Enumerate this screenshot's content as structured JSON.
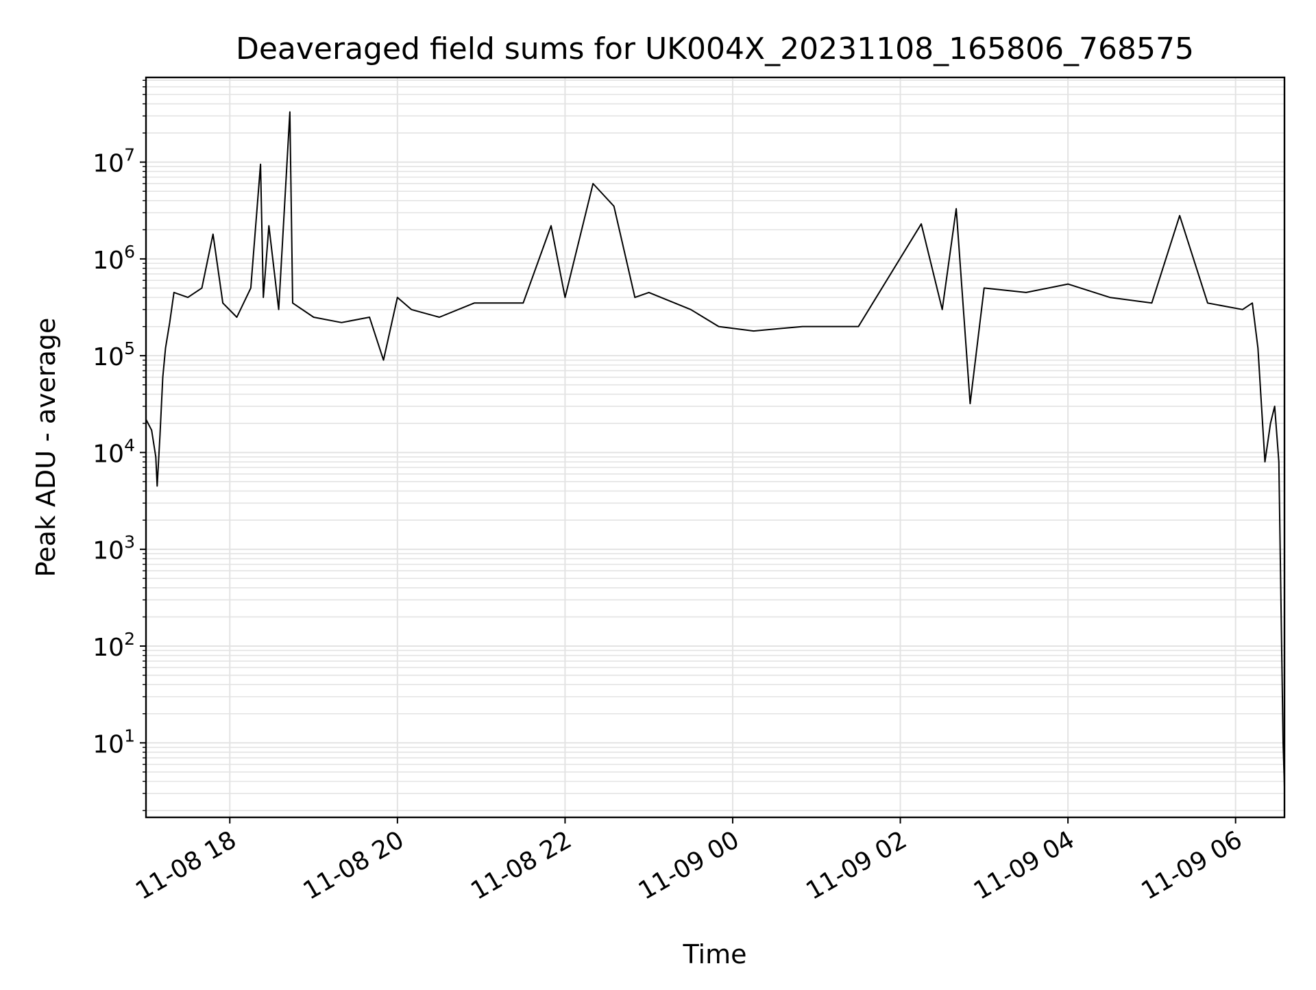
{
  "chart_data": {
    "type": "line",
    "title": "Deaveraged field sums for UK004X_20231108_165806_768575",
    "xlabel": "Time",
    "ylabel": "Peak ADU - average",
    "yscale": "log",
    "ylim": [
      1.7,
      75000000
    ],
    "xlim": [
      "11-08 17:00",
      "11-09 06:35"
    ],
    "grid": true,
    "line_color": "#000000",
    "grid_color": "#e3e3e3",
    "x_ticks": [
      {
        "label": "11-08 18",
        "t": "11-08 18:00"
      },
      {
        "label": "11-08 20",
        "t": "11-08 20:00"
      },
      {
        "label": "11-08 22",
        "t": "11-08 22:00"
      },
      {
        "label": "11-09 00",
        "t": "11-09 00:00"
      },
      {
        "label": "11-09 02",
        "t": "11-09 02:00"
      },
      {
        "label": "11-09 04",
        "t": "11-09 04:00"
      },
      {
        "label": "11-09 06",
        "t": "11-09 06:00"
      }
    ],
    "y_ticks": [
      {
        "base": "10",
        "exp": "1",
        "value": 10
      },
      {
        "base": "10",
        "exp": "2",
        "value": 100
      },
      {
        "base": "10",
        "exp": "3",
        "value": 1000
      },
      {
        "base": "10",
        "exp": "4",
        "value": 10000
      },
      {
        "base": "10",
        "exp": "5",
        "value": 100000
      },
      {
        "base": "10",
        "exp": "6",
        "value": 1000000
      },
      {
        "base": "10",
        "exp": "7",
        "value": 10000000
      }
    ],
    "series": [
      {
        "values": [
          [
            "11-08 17:00",
            22000
          ],
          [
            "11-08 17:04",
            17000
          ],
          [
            "11-08 17:07",
            9000
          ],
          [
            "11-08 17:08",
            4500
          ],
          [
            "11-08 17:10",
            15000
          ],
          [
            "11-08 17:12",
            60000
          ],
          [
            "11-08 17:14",
            120000
          ],
          [
            "11-08 17:17",
            220000
          ],
          [
            "11-08 17:20",
            450000
          ],
          [
            "11-08 17:30",
            400000
          ],
          [
            "11-08 17:40",
            500000
          ],
          [
            "11-08 17:48",
            1800000
          ],
          [
            "11-08 17:55",
            350000
          ],
          [
            "11-08 18:05",
            250000
          ],
          [
            "11-08 18:15",
            500000
          ],
          [
            "11-08 18:22",
            9500000
          ],
          [
            "11-08 18:24",
            400000
          ],
          [
            "11-08 18:28",
            2200000
          ],
          [
            "11-08 18:35",
            300000
          ],
          [
            "11-08 18:43",
            33000000
          ],
          [
            "11-08 18:45",
            350000
          ],
          [
            "11-08 19:00",
            250000
          ],
          [
            "11-08 19:20",
            220000
          ],
          [
            "11-08 19:40",
            250000
          ],
          [
            "11-08 19:50",
            90000
          ],
          [
            "11-08 20:00",
            400000
          ],
          [
            "11-08 20:10",
            300000
          ],
          [
            "11-08 20:30",
            250000
          ],
          [
            "11-08 20:55",
            350000
          ],
          [
            "11-08 21:30",
            350000
          ],
          [
            "11-08 21:50",
            2200000
          ],
          [
            "11-08 22:00",
            400000
          ],
          [
            "11-08 22:20",
            6000000
          ],
          [
            "11-08 22:35",
            3500000
          ],
          [
            "11-08 22:50",
            400000
          ],
          [
            "11-08 23:00",
            450000
          ],
          [
            "11-08 23:30",
            300000
          ],
          [
            "11-08 23:50",
            200000
          ],
          [
            "11-09 00:15",
            180000
          ],
          [
            "11-09 00:50",
            200000
          ],
          [
            "11-09 01:30",
            200000
          ],
          [
            "11-09 02:15",
            2300000
          ],
          [
            "11-09 02:30",
            300000
          ],
          [
            "11-09 02:40",
            3300000
          ],
          [
            "11-09 02:50",
            32000
          ],
          [
            "11-09 03:00",
            500000
          ],
          [
            "11-09 03:30",
            450000
          ],
          [
            "11-09 04:00",
            550000
          ],
          [
            "11-09 04:30",
            400000
          ],
          [
            "11-09 05:00",
            350000
          ],
          [
            "11-09 05:20",
            2800000
          ],
          [
            "11-09 05:40",
            350000
          ],
          [
            "11-09 06:05",
            300000
          ],
          [
            "11-09 06:12",
            350000
          ],
          [
            "11-09 06:16",
            120000
          ],
          [
            "11-09 06:21",
            8000
          ],
          [
            "11-09 06:25",
            20000
          ],
          [
            "11-09 06:28",
            30000
          ],
          [
            "11-09 06:31",
            8000
          ],
          [
            "11-09 06:34",
            10
          ],
          [
            "11-09 06:35",
            3.5
          ]
        ]
      }
    ]
  }
}
